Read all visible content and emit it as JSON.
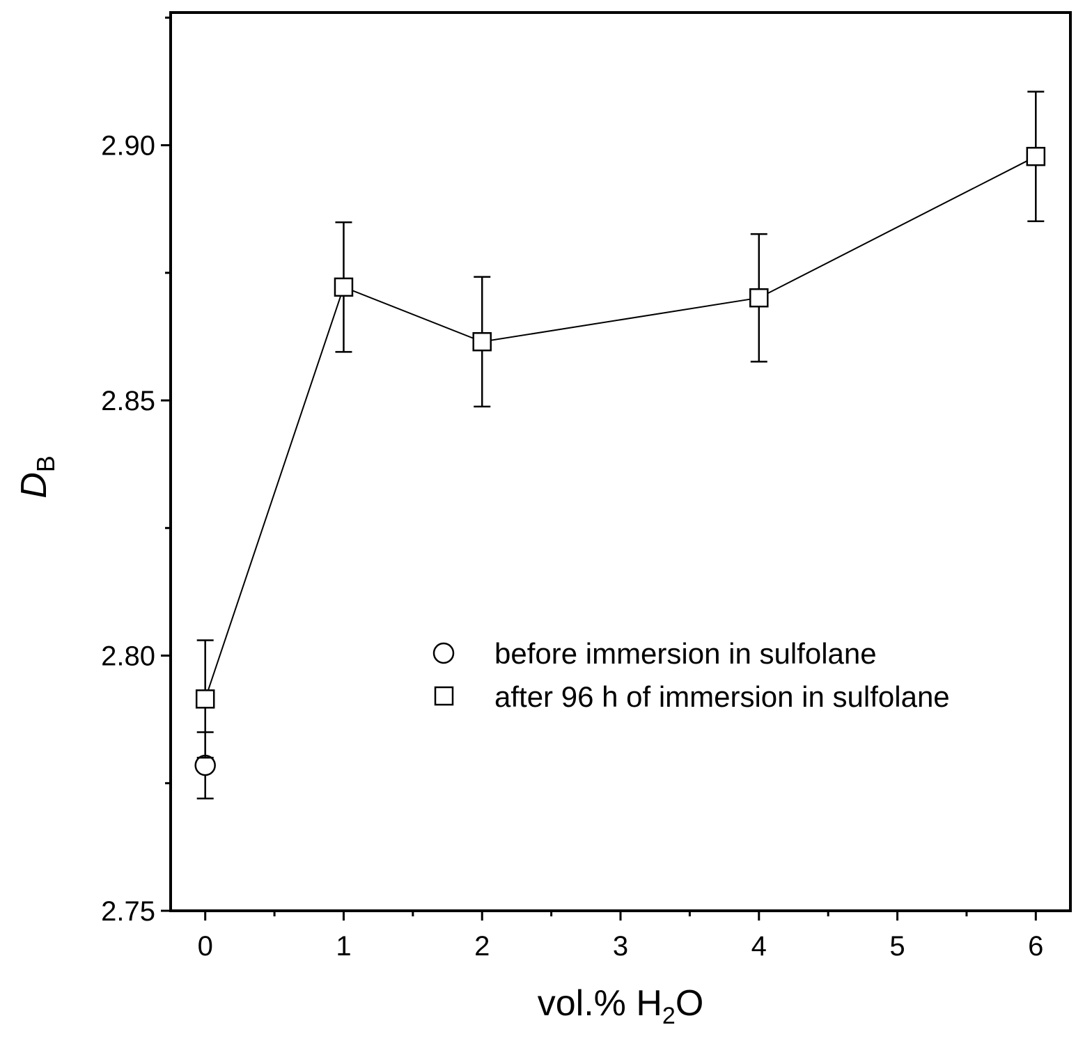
{
  "chart_data": {
    "type": "scatter",
    "xlabel": {
      "main": "vol.% H",
      "sub": "2",
      "tail": "O"
    },
    "ylabel": {
      "main": "D",
      "sub": "B"
    },
    "xlim": [
      -0.25,
      6.25
    ],
    "ylim": [
      2.75,
      2.926
    ],
    "x_ticks": [
      0,
      1,
      2,
      3,
      4,
      5,
      6
    ],
    "x_tick_labels": [
      "0",
      "1",
      "2",
      "3",
      "4",
      "5",
      "6"
    ],
    "y_ticks": [
      2.75,
      2.8,
      2.85,
      2.9
    ],
    "y_tick_labels": [
      "2.75",
      "2.80",
      "2.85",
      "2.90"
    ],
    "grid": false,
    "legend_position": "center-right",
    "series": [
      {
        "name": "before immersion in sulfolane",
        "marker": "circle",
        "line": false,
        "color": "#000000",
        "points": [
          {
            "x": 0,
            "y": 2.7785,
            "err": 0.0065
          }
        ]
      },
      {
        "name": "after 96 h of immersion in sulfolane",
        "marker": "square",
        "line": true,
        "color": "#000000",
        "points": [
          {
            "x": 0,
            "y": 2.7915,
            "err": 0.0115
          },
          {
            "x": 1,
            "y": 2.8722,
            "err": 0.0127
          },
          {
            "x": 2,
            "y": 2.8615,
            "err": 0.0127
          },
          {
            "x": 4,
            "y": 2.8701,
            "err": 0.0125
          },
          {
            "x": 6,
            "y": 2.8978,
            "err": 0.0127
          }
        ]
      }
    ]
  }
}
